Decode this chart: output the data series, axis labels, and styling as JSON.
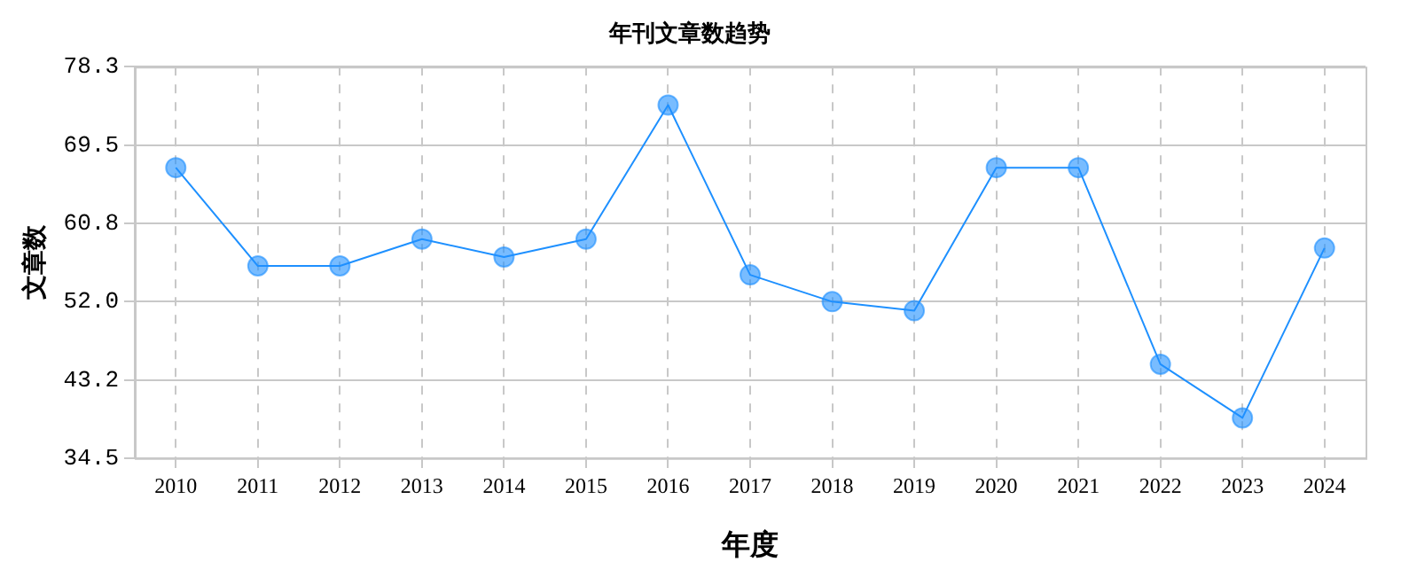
{
  "chart_data": {
    "type": "line",
    "title": "年刊文章数趋势",
    "xlabel": "年度",
    "ylabel": "文章数",
    "categories": [
      "2010",
      "2011",
      "2012",
      "2013",
      "2014",
      "2015",
      "2016",
      "2017",
      "2018",
      "2019",
      "2020",
      "2021",
      "2022",
      "2023",
      "2024"
    ],
    "series": [
      {
        "color": "#1e90ff",
        "values": [
          67,
          56,
          56,
          59,
          57,
          59,
          74,
          55,
          52,
          51,
          67,
          67,
          45,
          39,
          58
        ]
      }
    ],
    "ylim": [
      34.5,
      78.3
    ],
    "yticks": [
      {
        "value": 34.5,
        "label": "34.5"
      },
      {
        "value": 43.2,
        "label": "43.2"
      },
      {
        "value": 52.0,
        "label": "52.0"
      },
      {
        "value": 60.8,
        "label": "60.8"
      },
      {
        "value": 69.5,
        "label": "69.5"
      },
      {
        "value": 78.3,
        "label": "78.3"
      }
    ],
    "grid": true,
    "legend": false,
    "marker": "circle",
    "line_style": "solid"
  }
}
